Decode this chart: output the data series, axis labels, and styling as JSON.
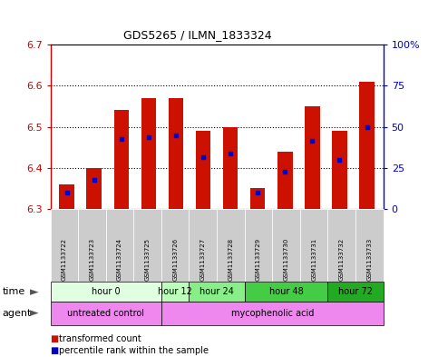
{
  "title": "GDS5265 / ILMN_1833324",
  "samples": [
    "GSM1133722",
    "GSM1133723",
    "GSM1133724",
    "GSM1133725",
    "GSM1133726",
    "GSM1133727",
    "GSM1133728",
    "GSM1133729",
    "GSM1133730",
    "GSM1133731",
    "GSM1133732",
    "GSM1133733"
  ],
  "bar_bottom": 6.3,
  "red_tops": [
    6.36,
    6.4,
    6.54,
    6.57,
    6.57,
    6.49,
    6.5,
    6.35,
    6.44,
    6.55,
    6.49,
    6.61
  ],
  "blue_vals": [
    6.34,
    6.37,
    6.47,
    6.475,
    6.48,
    6.425,
    6.435,
    6.34,
    6.39,
    6.465,
    6.42,
    6.5
  ],
  "ylim_left": [
    6.3,
    6.7
  ],
  "ylim_right": [
    0,
    100
  ],
  "yticks_left": [
    6.3,
    6.4,
    6.5,
    6.6,
    6.7
  ],
  "yticks_right": [
    0,
    25,
    50,
    75,
    100
  ],
  "ytick_labels_right": [
    "0",
    "25",
    "50",
    "75",
    "100%"
  ],
  "left_axis_color": "#cc0000",
  "right_axis_color": "#0000cc",
  "bar_color": "#cc1100",
  "blue_marker_color": "#0000cc",
  "time_groups": [
    {
      "label": "hour 0",
      "start": 0,
      "end": 3,
      "color": "#e0ffe0"
    },
    {
      "label": "hour 12",
      "start": 4,
      "end": 4,
      "color": "#bbffbb"
    },
    {
      "label": "hour 24",
      "start": 5,
      "end": 6,
      "color": "#88ee88"
    },
    {
      "label": "hour 48",
      "start": 7,
      "end": 9,
      "color": "#44cc44"
    },
    {
      "label": "hour 72",
      "start": 10,
      "end": 11,
      "color": "#22aa22"
    }
  ],
  "agent_groups": [
    {
      "label": "untreated control",
      "start": 0,
      "end": 3,
      "color": "#ee88ee"
    },
    {
      "label": "mycophenolic acid",
      "start": 4,
      "end": 11,
      "color": "#ee88ee"
    }
  ],
  "sample_bg_color": "#cccccc",
  "legend_red": "transformed count",
  "legend_blue": "percentile rank within the sample",
  "bar_width": 0.55,
  "dot_grid_color": "#000000"
}
